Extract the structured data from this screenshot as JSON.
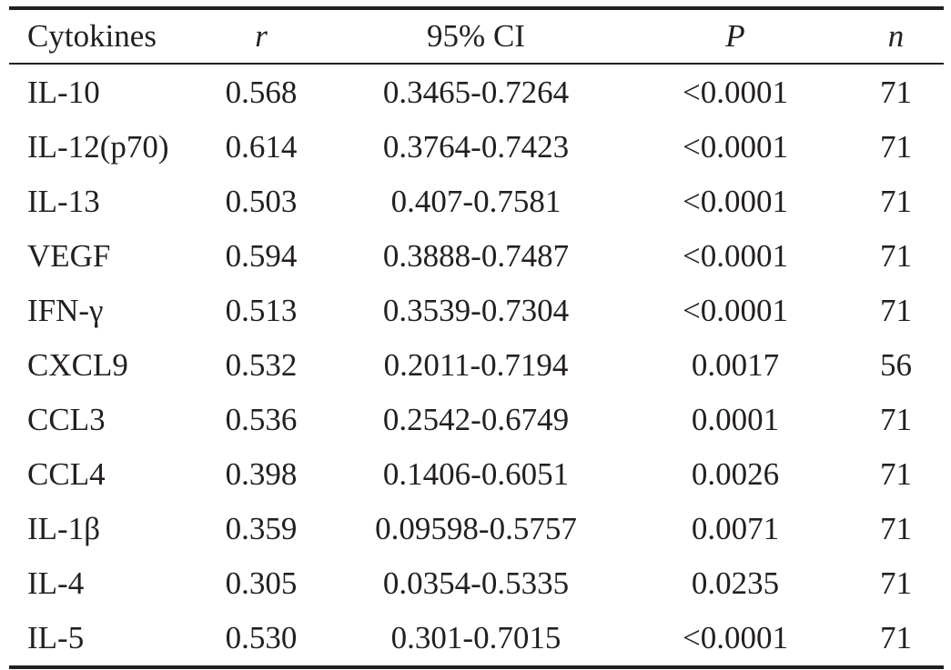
{
  "table": {
    "headers": {
      "name": "Cytokines",
      "r": "r",
      "ci": "95% CI",
      "p": "P",
      "n": "n"
    },
    "rows": [
      {
        "name": "IL-10",
        "r": "0.568",
        "ci": "0.3465-0.7264",
        "p": "<0.0001",
        "n": "71"
      },
      {
        "name": "IL-12(p70)",
        "r": "0.614",
        "ci": "0.3764-0.7423",
        "p": "<0.0001",
        "n": "71"
      },
      {
        "name": "IL-13",
        "r": "0.503",
        "ci": "0.407-0.7581",
        "p": "<0.0001",
        "n": "71"
      },
      {
        "name": "VEGF",
        "r": "0.594",
        "ci": "0.3888-0.7487",
        "p": "<0.0001",
        "n": "71"
      },
      {
        "name": "IFN-γ",
        "r": "0.513",
        "ci": "0.3539-0.7304",
        "p": "<0.0001",
        "n": "71"
      },
      {
        "name": "CXCL9",
        "r": "0.532",
        "ci": "0.2011-0.7194",
        "p": "0.0017",
        "n": "56"
      },
      {
        "name": "CCL3",
        "r": "0.536",
        "ci": "0.2542-0.6749",
        "p": "0.0001",
        "n": "71"
      },
      {
        "name": "CCL4",
        "r": "0.398",
        "ci": "0.1406-0.6051",
        "p": "0.0026",
        "n": "71"
      },
      {
        "name": "IL-1β",
        "r": "0.359",
        "ci": "0.09598-0.5757",
        "p": "0.0071",
        "n": "71"
      },
      {
        "name": "IL-4",
        "r": "0.305",
        "ci": "0.0354-0.5335",
        "p": "0.0235",
        "n": "71"
      },
      {
        "name": "IL-5",
        "r": "0.530",
        "ci": "0.301-0.7015",
        "p": "<0.0001",
        "n": "71"
      }
    ]
  }
}
